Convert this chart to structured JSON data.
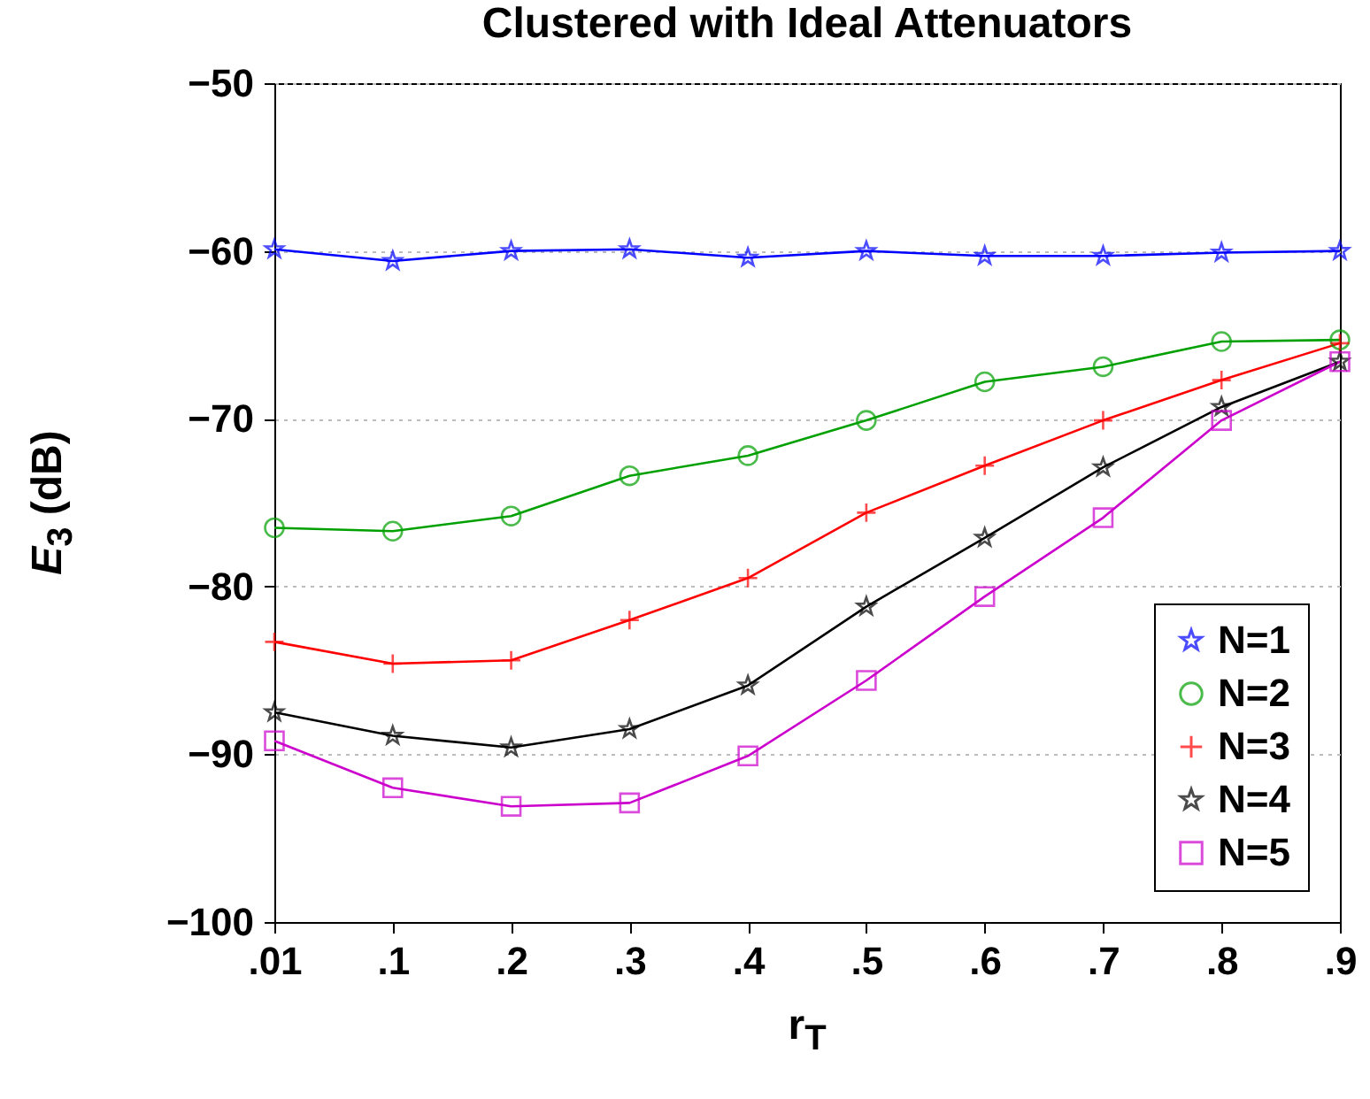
{
  "chart_data": {
    "type": "line",
    "title": "Clustered with Ideal Attenuators",
    "xlabel": "r$_{T}$",
    "ylabel": "E$_{3}$ (dB)",
    "categories": [
      ".01",
      ".1",
      ".2",
      ".3",
      ".4",
      ".5",
      ".6",
      ".7",
      ".8",
      ".9"
    ],
    "ylim": [
      -100,
      -50
    ],
    "yticks": [
      -100,
      -90,
      -80,
      -70,
      -60,
      -50
    ],
    "grid": "y",
    "legend": "bottom right",
    "series": [
      {
        "name": "N=1",
        "color": "#0000ff",
        "marker": "star",
        "values": [
          -59.9,
          -60.6,
          -60,
          -59.9,
          -60.4,
          -60,
          -60.3,
          -60.3,
          -60.1,
          -60
        ]
      },
      {
        "name": "N=2",
        "color": "#00a000",
        "marker": "circle",
        "values": [
          -76.5,
          -76.7,
          -75.8,
          -73.4,
          -72.2,
          -70.1,
          -67.8,
          -66.9,
          -65.4,
          -65.3
        ]
      },
      {
        "name": "N=3",
        "color": "#ff0000",
        "marker": "cross",
        "values": [
          -83.3,
          -84.6,
          -84.4,
          -82,
          -79.5,
          -75.6,
          -72.8,
          -70.1,
          -67.7,
          -65.5
        ]
      },
      {
        "name": "N=4",
        "color": "#000000",
        "marker": "star",
        "values": [
          -87.5,
          -88.9,
          -89.6,
          -88.5,
          -85.9,
          -81.2,
          -77.1,
          -72.9,
          -69.3,
          -66.6
        ]
      },
      {
        "name": "N=5",
        "color": "#cc00cc",
        "marker": "square",
        "values": [
          -89.2,
          -92.0,
          -93.1,
          -92.9,
          -90.1,
          -85.6,
          -80.6,
          -75.9,
          -70.1,
          -66.6
        ]
      }
    ]
  }
}
